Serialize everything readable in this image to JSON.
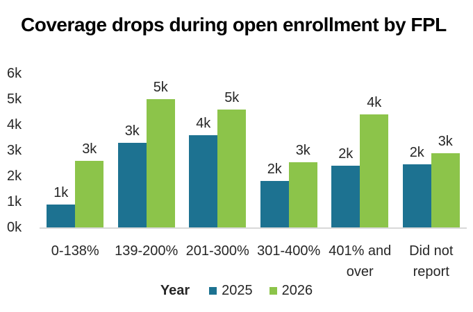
{
  "title": "Coverage drops during open enrollment by FPL",
  "colors": {
    "series_2025": "#1d7291",
    "series_2026": "#8cc44a",
    "axis_line": "#d8d8d8",
    "label_text": "#262626",
    "title_text": "#000000"
  },
  "legend": {
    "title": "Year",
    "items": [
      {
        "label": "2025",
        "color": "#1d7291"
      },
      {
        "label": "2026",
        "color": "#8cc44a"
      }
    ]
  },
  "chart_data": {
    "type": "bar",
    "title": "Coverage drops during open enrollment by FPL",
    "categories": [
      "0-138%",
      "139-200%",
      "201-300%",
      "301-400%",
      "401% and over",
      "Did not report"
    ],
    "series": [
      {
        "name": "2025",
        "color": "#1d7291",
        "values": [
          0.9,
          3.3,
          3.6,
          1.8,
          2.4,
          2.45
        ],
        "data_labels": [
          "1k",
          "3k",
          "4k",
          "2k",
          "2k",
          "2k"
        ]
      },
      {
        "name": "2026",
        "color": "#8cc44a",
        "values": [
          2.6,
          5.0,
          4.6,
          2.55,
          4.4,
          2.9
        ],
        "data_labels": [
          "3k",
          "5k",
          "5k",
          "3k",
          "4k",
          "3k"
        ]
      }
    ],
    "values_unit": "thousands",
    "xlabel": "",
    "ylabel": "",
    "ylim": [
      0,
      6
    ],
    "y_tick_labels": [
      "0k",
      "1k",
      "2k",
      "3k",
      "4k",
      "5k",
      "6k"
    ],
    "grid": false,
    "legend_position": "bottom",
    "legend_title": "Year"
  }
}
